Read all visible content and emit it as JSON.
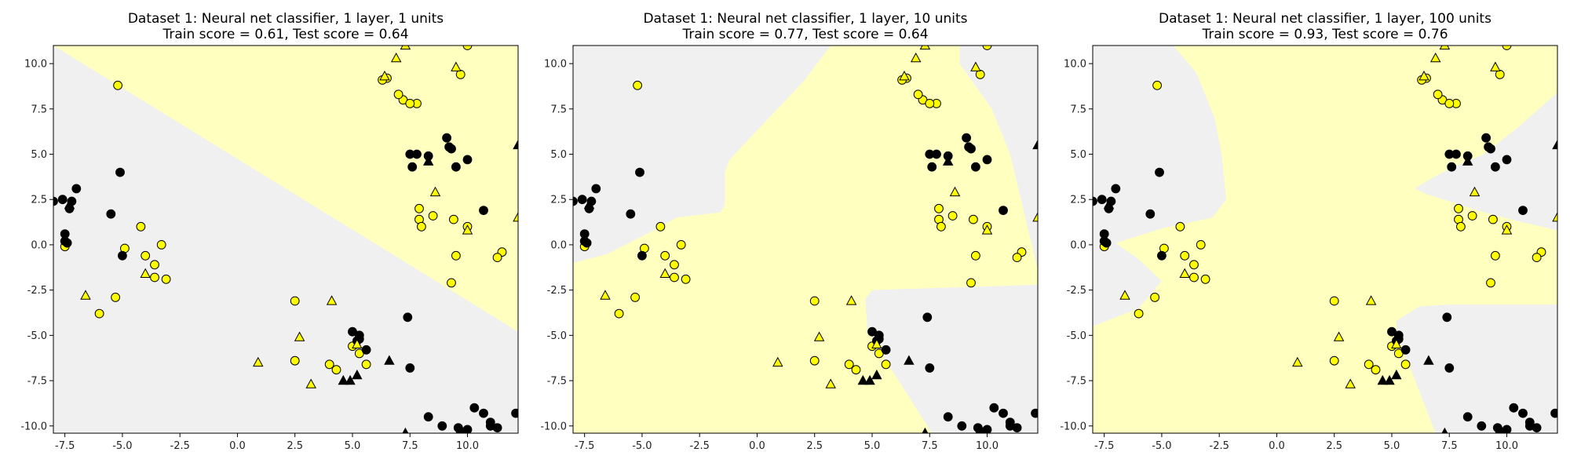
{
  "chart_data": [
    {
      "type": "scatter",
      "title_line1": "Dataset 1: Neural net classifier, 1 layer, 1 units",
      "title_line2": "Train score = 0.61, Test score = 0.64",
      "xlim": [
        -8,
        12.2
      ],
      "ylim": [
        -10.4,
        11.0
      ],
      "xticks": [
        "-7.5",
        "-5.0",
        "-2.5",
        "0.0",
        "2.5",
        "5.0",
        "7.5",
        "10.0"
      ],
      "yticks": [
        "-10.0",
        "-7.5",
        "-5.0",
        "-2.5",
        "0.0",
        "2.5",
        "5.0",
        "7.5",
        "10.0"
      ],
      "regions": [
        {
          "color": "#ffffbf",
          "polygon": [
            [
              -8,
              11.0
            ],
            [
              12.2,
              11.0
            ],
            [
              12.2,
              -4.8
            ],
            [
              -8,
              11.0
            ]
          ]
        },
        {
          "color": "#f0f0f0",
          "polygon": [
            [
              -8,
              11.0
            ],
            [
              12.2,
              -4.8
            ],
            [
              12.2,
              -10.4
            ],
            [
              -8,
              -10.4
            ]
          ]
        }
      ]
    },
    {
      "type": "scatter",
      "title_line1": "Dataset 1: Neural net classifier, 1 layer, 10 units",
      "title_line2": "Train score = 0.77, Test score = 0.64",
      "xlim": [
        -8,
        12.2
      ],
      "ylim": [
        -10.4,
        11.0
      ],
      "xticks": [
        "-7.5",
        "-5.0",
        "-2.5",
        "0.0",
        "2.5",
        "5.0",
        "7.5",
        "10.0"
      ],
      "yticks": [
        "-10.0",
        "-7.5",
        "-5.0",
        "-2.5",
        "0.0",
        "2.5",
        "5.0",
        "7.5",
        "10.0"
      ],
      "regions": [
        {
          "color": "#ffffbf",
          "polygon": [
            [
              -8,
              -1.0
            ],
            [
              -6.5,
              -0.5
            ],
            [
              -4.5,
              0.8
            ],
            [
              -3.5,
              1.5
            ],
            [
              -2.2,
              1.7
            ],
            [
              -1.6,
              1.8
            ],
            [
              -1.4,
              2.2
            ],
            [
              -1.4,
              4.0
            ],
            [
              -1.2,
              4.7
            ],
            [
              2.0,
              9.0
            ],
            [
              3.2,
              11.0
            ],
            [
              8.8,
              11.0
            ],
            [
              8.8,
              10.0
            ],
            [
              10.2,
              7.5
            ],
            [
              11.0,
              5.0
            ],
            [
              12.2,
              -1.4
            ],
            [
              12.2,
              -2.2
            ],
            [
              10.0,
              -2.3
            ],
            [
              7.5,
              -2.4
            ],
            [
              5.0,
              -2.5
            ],
            [
              4.7,
              -3.0
            ],
            [
              4.8,
              -4.7
            ],
            [
              5.3,
              -5.8
            ],
            [
              7.6,
              -10.4
            ],
            [
              -8,
              -10.4
            ]
          ]
        }
      ],
      "background": "#f0f0f0"
    },
    {
      "type": "scatter",
      "title_line1": "Dataset 1: Neural net classifier, 1 layer, 100 units",
      "title_line2": "Train score = 0.93, Test score = 0.76",
      "xlim": [
        -8,
        12.2
      ],
      "ylim": [
        -10.4,
        11.0
      ],
      "xticks": [
        "-7.5",
        "-5.0",
        "-2.5",
        "0.0",
        "2.5",
        "5.0",
        "7.5",
        "10.0"
      ],
      "yticks": [
        "-10.0",
        "-7.5",
        "-5.0",
        "-2.5",
        "0.0",
        "2.5",
        "5.0",
        "7.5",
        "10.0"
      ],
      "background": "#ffffbf",
      "regions": [
        {
          "color": "#f0f0f0",
          "polygon": [
            [
              -8,
              11.0
            ],
            [
              -4.5,
              11.0
            ],
            [
              -3.5,
              9.5
            ],
            [
              -2.7,
              7.0
            ],
            [
              -2.4,
              5.0
            ],
            [
              -2.2,
              2.5
            ],
            [
              -2.8,
              1.5
            ],
            [
              -5.0,
              0.9
            ],
            [
              -6.5,
              0.3
            ],
            [
              -7.0,
              0.1
            ],
            [
              -6.0,
              -0.8
            ],
            [
              -5.0,
              -2.0
            ],
            [
              -6.0,
              -3.5
            ],
            [
              -8,
              -4.5
            ]
          ]
        },
        {
          "color": "#f0f0f0",
          "polygon": [
            [
              -8,
              -0.2
            ],
            [
              -7.2,
              -0.3
            ],
            [
              -8,
              -0.8
            ]
          ]
        },
        {
          "color": "#f0f0f0",
          "polygon": [
            [
              12.2,
              8.4
            ],
            [
              10.5,
              6.5
            ],
            [
              9.0,
              5.0
            ],
            [
              7.5,
              4.2
            ],
            [
              6.5,
              3.5
            ],
            [
              6.0,
              3.1
            ],
            [
              6.5,
              2.8
            ],
            [
              9.0,
              1.8
            ],
            [
              10.5,
              1.3
            ],
            [
              12.2,
              0.8
            ],
            [
              12.2,
              8.4
            ]
          ]
        },
        {
          "color": "#f0f0f0",
          "polygon": [
            [
              6.9,
              -10.4
            ],
            [
              5.5,
              -5.8
            ],
            [
              5.2,
              -5.0
            ],
            [
              5.2,
              -4.2
            ],
            [
              6.2,
              -3.4
            ],
            [
              7.5,
              -3.3
            ],
            [
              9.5,
              -3.3
            ],
            [
              12.2,
              -3.3
            ],
            [
              12.2,
              -10.4
            ]
          ]
        }
      ]
    }
  ],
  "points": {
    "yellow_circles": [
      [
        -5.2,
        8.8
      ],
      [
        7.2,
        8.0
      ],
      [
        7.0,
        8.3
      ],
      [
        7.8,
        7.8
      ],
      [
        7.5,
        7.8
      ],
      [
        6.5,
        9.2
      ],
      [
        6.3,
        9.1
      ],
      [
        9.7,
        9.4
      ],
      [
        10.0,
        11.0
      ],
      [
        7.9,
        2.0
      ],
      [
        8.5,
        1.6
      ],
      [
        7.9,
        1.4
      ],
      [
        8.0,
        1.0
      ],
      [
        9.4,
        1.4
      ],
      [
        10.0,
        1.0
      ],
      [
        9.5,
        -0.6
      ],
      [
        11.5,
        -0.4
      ],
      [
        11.3,
        -0.7
      ],
      [
        9.3,
        -2.1
      ],
      [
        -4.2,
        1.0
      ],
      [
        -3.3,
        0.0
      ],
      [
        -4.9,
        -0.2
      ],
      [
        -4.0,
        -0.6
      ],
      [
        -3.6,
        -1.1
      ],
      [
        -3.6,
        -1.8
      ],
      [
        -3.1,
        -1.9
      ],
      [
        -6.0,
        -3.8
      ],
      [
        -5.3,
        -2.9
      ],
      [
        -7.5,
        -0.1
      ],
      [
        2.5,
        -3.1
      ],
      [
        2.5,
        -6.4
      ],
      [
        4.0,
        -6.6
      ],
      [
        4.3,
        -6.9
      ],
      [
        5.0,
        -5.6
      ],
      [
        5.3,
        -6.0
      ],
      [
        5.6,
        -6.6
      ]
    ],
    "yellow_triangles": [
      [
        7.3,
        11.0
      ],
      [
        6.9,
        10.3
      ],
      [
        6.4,
        9.3
      ],
      [
        9.5,
        9.8
      ],
      [
        8.6,
        2.9
      ],
      [
        10.0,
        0.8
      ],
      [
        12.2,
        1.5
      ],
      [
        -4.0,
        -1.6
      ],
      [
        -6.6,
        -2.8
      ],
      [
        0.9,
        -6.5
      ],
      [
        2.7,
        -5.1
      ],
      [
        4.1,
        -3.1
      ],
      [
        3.2,
        -7.7
      ],
      [
        5.2,
        -5.5
      ]
    ],
    "black_circles": [
      [
        -7.6,
        2.5
      ],
      [
        -7.3,
        2.0
      ],
      [
        -7.2,
        2.4
      ],
      [
        -7.0,
        3.1
      ],
      [
        -8.0,
        2.4
      ],
      [
        -7.5,
        0.6
      ],
      [
        -7.5,
        0.2
      ],
      [
        -7.4,
        0.1
      ],
      [
        -5.1,
        4.0
      ],
      [
        -5.5,
        1.7
      ],
      [
        -5.0,
        -0.6
      ],
      [
        7.5,
        5.0
      ],
      [
        7.8,
        5.0
      ],
      [
        7.6,
        4.3
      ],
      [
        8.3,
        4.9
      ],
      [
        9.3,
        5.3
      ],
      [
        9.1,
        5.9
      ],
      [
        9.2,
        5.4
      ],
      [
        9.5,
        4.3
      ],
      [
        10.0,
        4.7
      ],
      [
        10.7,
        1.9
      ],
      [
        5.0,
        -4.8
      ],
      [
        5.3,
        -5.0
      ],
      [
        5.3,
        -5.2
      ],
      [
        5.6,
        -5.8
      ],
      [
        5.2,
        -5.3
      ],
      [
        7.4,
        -4.0
      ],
      [
        7.5,
        -6.8
      ],
      [
        8.3,
        -9.5
      ],
      [
        8.9,
        -10.0
      ],
      [
        9.6,
        -10.1
      ],
      [
        9.7,
        -10.3
      ],
      [
        10.0,
        -10.2
      ],
      [
        10.3,
        -9.0
      ],
      [
        10.7,
        -9.3
      ],
      [
        11.0,
        -10.0
      ],
      [
        11.3,
        -10.1
      ],
      [
        11.0,
        -9.8
      ],
      [
        12.1,
        -9.3
      ]
    ],
    "black_triangles": [
      [
        -7.3,
        2.2
      ],
      [
        8.3,
        4.6
      ],
      [
        12.2,
        5.5
      ],
      [
        4.6,
        -7.5
      ],
      [
        4.9,
        -7.5
      ],
      [
        5.2,
        -7.2
      ],
      [
        6.6,
        -6.4
      ],
      [
        7.3,
        -10.4
      ]
    ]
  },
  "colors": {
    "yellow_region": "#ffffbf",
    "gray_region": "#f0f0f0",
    "yellow_marker": "#ffff00",
    "black_marker": "#000000"
  }
}
